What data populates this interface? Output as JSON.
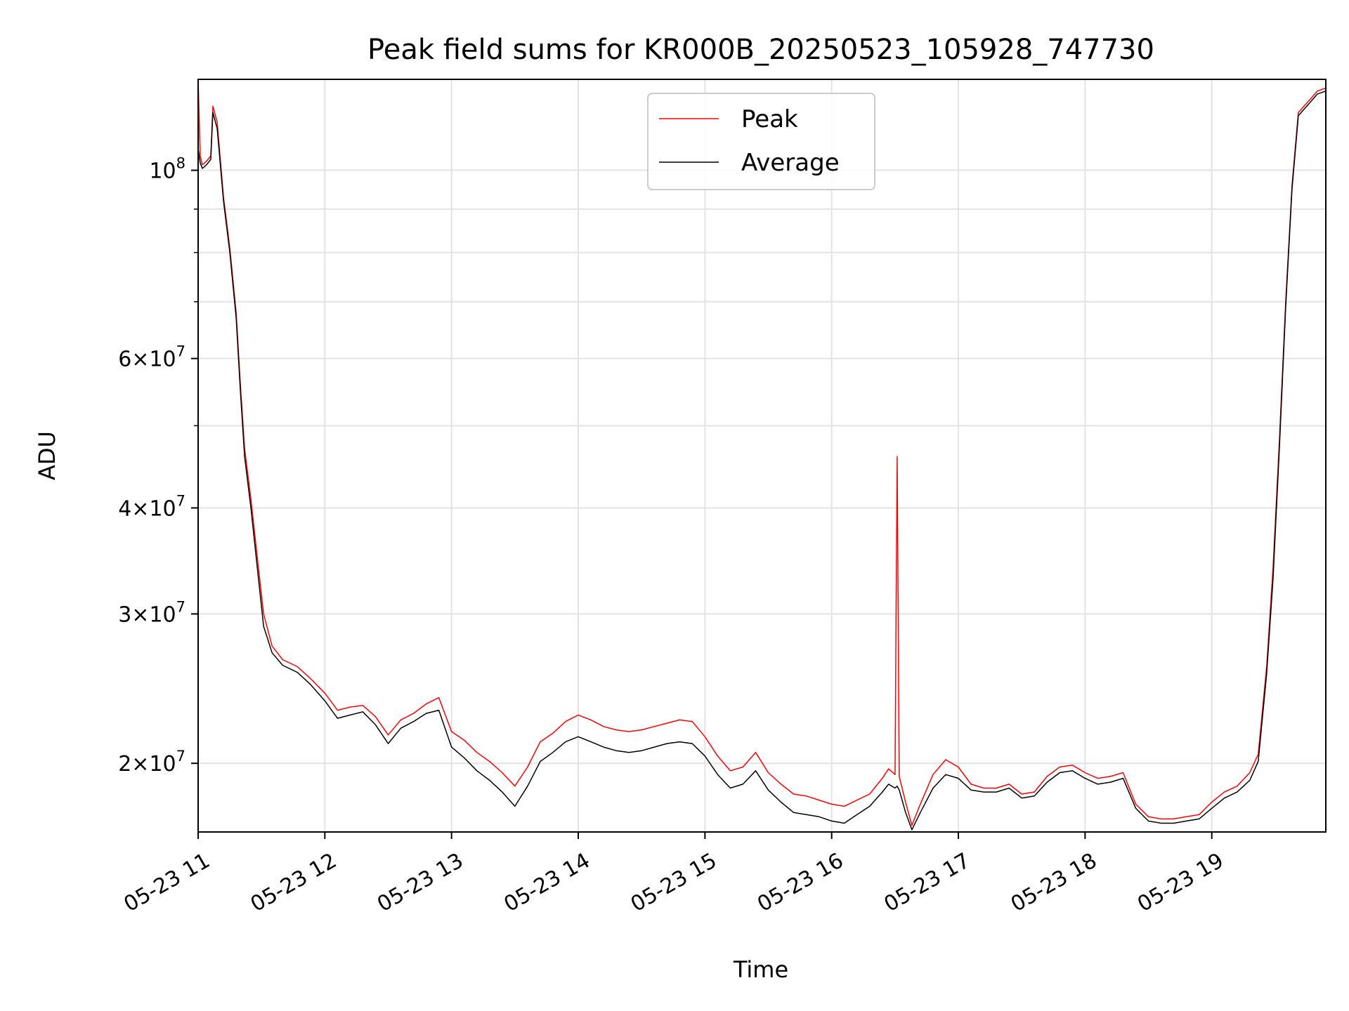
{
  "colors": {
    "peak": "#ff0000",
    "average": "#000000",
    "grid": "#e3e3e3",
    "axes": "#000000",
    "background": "#ffffff"
  },
  "chart_data": {
    "type": "line",
    "title": "Peak field sums for KR000B_20250523_105928_747730",
    "xlabel": "Time",
    "ylabel": "ADU",
    "yscale": "log",
    "grid": true,
    "legend_position": "top-center",
    "xlim": [
      "2025-05-23 11:00",
      "2025-05-23 19:54"
    ],
    "ylim": [
      16600000,
      128000000
    ],
    "x_ticks": [
      {
        "t": "2025-05-23 11:00",
        "label": "05-23 11"
      },
      {
        "t": "2025-05-23 12:00",
        "label": "05-23 12"
      },
      {
        "t": "2025-05-23 13:00",
        "label": "05-23 13"
      },
      {
        "t": "2025-05-23 14:00",
        "label": "05-23 14"
      },
      {
        "t": "2025-05-23 15:00",
        "label": "05-23 15"
      },
      {
        "t": "2025-05-23 16:00",
        "label": "05-23 16"
      },
      {
        "t": "2025-05-23 17:00",
        "label": "05-23 17"
      },
      {
        "t": "2025-05-23 18:00",
        "label": "05-23 18"
      },
      {
        "t": "2025-05-23 19:00",
        "label": "05-23 19"
      }
    ],
    "y_major_ticks": [
      {
        "v": 20000000,
        "mant": "2",
        "exp": "7"
      },
      {
        "v": 30000000,
        "mant": "3",
        "exp": "7"
      },
      {
        "v": 40000000,
        "mant": "4",
        "exp": "7"
      },
      {
        "v": 60000000,
        "mant": "6",
        "exp": "7"
      },
      {
        "v": 100000000,
        "mant": "",
        "exp": "8"
      }
    ],
    "y_minor_ticks": [
      50000000,
      70000000,
      80000000,
      90000000
    ],
    "series": [
      {
        "name": "Peak",
        "color": "#ff0000",
        "points": [
          [
            "2025-05-23 11:00",
            128000000
          ],
          [
            "2025-05-23 11:01",
            104000000
          ],
          [
            "2025-05-23 11:02",
            101500000
          ],
          [
            "2025-05-23 11:04",
            102500000
          ],
          [
            "2025-05-23 11:06",
            104000000
          ],
          [
            "2025-05-23 11:07",
            119000000
          ],
          [
            "2025-05-23 11:09",
            114000000
          ],
          [
            "2025-05-23 11:12",
            93000000
          ],
          [
            "2025-05-23 11:15",
            81000000
          ],
          [
            "2025-05-23 11:18",
            68000000
          ],
          [
            "2025-05-23 11:20",
            56000000
          ],
          [
            "2025-05-23 11:22",
            47000000
          ],
          [
            "2025-05-23 11:25",
            41000000
          ],
          [
            "2025-05-23 11:28",
            35000000
          ],
          [
            "2025-05-23 11:31",
            30000000
          ],
          [
            "2025-05-23 11:35",
            27500000
          ],
          [
            "2025-05-23 11:40",
            26500000
          ],
          [
            "2025-05-23 11:47",
            26000000
          ],
          [
            "2025-05-23 11:53",
            25200000
          ],
          [
            "2025-05-23 12:00",
            24200000
          ],
          [
            "2025-05-23 12:06",
            23100000
          ],
          [
            "2025-05-23 12:12",
            23300000
          ],
          [
            "2025-05-23 12:18",
            23400000
          ],
          [
            "2025-05-23 12:24",
            22700000
          ],
          [
            "2025-05-23 12:30",
            21600000
          ],
          [
            "2025-05-23 12:36",
            22500000
          ],
          [
            "2025-05-23 12:42",
            22900000
          ],
          [
            "2025-05-23 12:48",
            23500000
          ],
          [
            "2025-05-23 12:54",
            23900000
          ],
          [
            "2025-05-23 13:00",
            21800000
          ],
          [
            "2025-05-23 13:06",
            21300000
          ],
          [
            "2025-05-23 13:12",
            20600000
          ],
          [
            "2025-05-23 13:18",
            20100000
          ],
          [
            "2025-05-23 13:24",
            19500000
          ],
          [
            "2025-05-23 13:30",
            18800000
          ],
          [
            "2025-05-23 13:36",
            19800000
          ],
          [
            "2025-05-23 13:42",
            21200000
          ],
          [
            "2025-05-23 13:48",
            21700000
          ],
          [
            "2025-05-23 13:54",
            22400000
          ],
          [
            "2025-05-23 14:00",
            22800000
          ],
          [
            "2025-05-23 14:06",
            22500000
          ],
          [
            "2025-05-23 14:12",
            22100000
          ],
          [
            "2025-05-23 14:18",
            21900000
          ],
          [
            "2025-05-23 14:24",
            21800000
          ],
          [
            "2025-05-23 14:30",
            21900000
          ],
          [
            "2025-05-23 14:36",
            22100000
          ],
          [
            "2025-05-23 14:42",
            22300000
          ],
          [
            "2025-05-23 14:48",
            22500000
          ],
          [
            "2025-05-23 14:54",
            22400000
          ],
          [
            "2025-05-23 15:00",
            21500000
          ],
          [
            "2025-05-23 15:06",
            20400000
          ],
          [
            "2025-05-23 15:12",
            19600000
          ],
          [
            "2025-05-23 15:18",
            19800000
          ],
          [
            "2025-05-23 15:24",
            20600000
          ],
          [
            "2025-05-23 15:30",
            19500000
          ],
          [
            "2025-05-23 15:36",
            18900000
          ],
          [
            "2025-05-23 15:42",
            18400000
          ],
          [
            "2025-05-23 15:48",
            18300000
          ],
          [
            "2025-05-23 15:54",
            18100000
          ],
          [
            "2025-05-23 16:00",
            17900000
          ],
          [
            "2025-05-23 16:06",
            17800000
          ],
          [
            "2025-05-23 16:12",
            18100000
          ],
          [
            "2025-05-23 16:18",
            18400000
          ],
          [
            "2025-05-23 16:24",
            19200000
          ],
          [
            "2025-05-23 16:27",
            19700000
          ],
          [
            "2025-05-23 16:30",
            19400000
          ],
          [
            "2025-05-23 16:31",
            46000000
          ],
          [
            "2025-05-23 16:32",
            19300000
          ],
          [
            "2025-05-23 16:35",
            18000000
          ],
          [
            "2025-05-23 16:38",
            16900000
          ],
          [
            "2025-05-23 16:42",
            17900000
          ],
          [
            "2025-05-23 16:48",
            19400000
          ],
          [
            "2025-05-23 16:54",
            20200000
          ],
          [
            "2025-05-23 17:00",
            19800000
          ],
          [
            "2025-05-23 17:06",
            18900000
          ],
          [
            "2025-05-23 17:12",
            18700000
          ],
          [
            "2025-05-23 17:18",
            18700000
          ],
          [
            "2025-05-23 17:24",
            18900000
          ],
          [
            "2025-05-23 17:30",
            18400000
          ],
          [
            "2025-05-23 17:36",
            18500000
          ],
          [
            "2025-05-23 17:42",
            19300000
          ],
          [
            "2025-05-23 17:48",
            19800000
          ],
          [
            "2025-05-23 17:54",
            19900000
          ],
          [
            "2025-05-23 18:00",
            19500000
          ],
          [
            "2025-05-23 18:06",
            19200000
          ],
          [
            "2025-05-23 18:12",
            19300000
          ],
          [
            "2025-05-23 18:18",
            19500000
          ],
          [
            "2025-05-23 18:24",
            17900000
          ],
          [
            "2025-05-23 18:30",
            17300000
          ],
          [
            "2025-05-23 18:36",
            17200000
          ],
          [
            "2025-05-23 18:42",
            17200000
          ],
          [
            "2025-05-23 18:48",
            17300000
          ],
          [
            "2025-05-23 18:54",
            17400000
          ],
          [
            "2025-05-23 19:00",
            18000000
          ],
          [
            "2025-05-23 19:06",
            18500000
          ],
          [
            "2025-05-23 19:12",
            18800000
          ],
          [
            "2025-05-23 19:18",
            19500000
          ],
          [
            "2025-05-23 19:22",
            20500000
          ],
          [
            "2025-05-23 19:26",
            26000000
          ],
          [
            "2025-05-23 19:29",
            34000000
          ],
          [
            "2025-05-23 19:32",
            48000000
          ],
          [
            "2025-05-23 19:35",
            70000000
          ],
          [
            "2025-05-23 19:38",
            96000000
          ],
          [
            "2025-05-23 19:41",
            117000000
          ],
          [
            "2025-05-23 19:45",
            120000000
          ],
          [
            "2025-05-23 19:50",
            124000000
          ],
          [
            "2025-05-23 19:54",
            125000000
          ]
        ]
      },
      {
        "name": "Average",
        "color": "#000000",
        "points": [
          [
            "2025-05-23 11:00",
            106000000
          ],
          [
            "2025-05-23 11:01",
            102000000
          ],
          [
            "2025-05-23 11:02",
            100500000
          ],
          [
            "2025-05-23 11:04",
            101500000
          ],
          [
            "2025-05-23 11:06",
            103000000
          ],
          [
            "2025-05-23 11:07",
            117000000
          ],
          [
            "2025-05-23 11:09",
            112000000
          ],
          [
            "2025-05-23 11:12",
            92000000
          ],
          [
            "2025-05-23 11:15",
            80000000
          ],
          [
            "2025-05-23 11:18",
            67000000
          ],
          [
            "2025-05-23 11:20",
            55000000
          ],
          [
            "2025-05-23 11:22",
            46000000
          ],
          [
            "2025-05-23 11:25",
            40000000
          ],
          [
            "2025-05-23 11:28",
            34000000
          ],
          [
            "2025-05-23 11:31",
            29000000
          ],
          [
            "2025-05-23 11:35",
            27000000
          ],
          [
            "2025-05-23 11:40",
            26100000
          ],
          [
            "2025-05-23 11:47",
            25600000
          ],
          [
            "2025-05-23 11:53",
            24800000
          ],
          [
            "2025-05-23 12:00",
            23700000
          ],
          [
            "2025-05-23 12:06",
            22600000
          ],
          [
            "2025-05-23 12:12",
            22800000
          ],
          [
            "2025-05-23 12:18",
            23000000
          ],
          [
            "2025-05-23 12:24",
            22200000
          ],
          [
            "2025-05-23 12:30",
            21100000
          ],
          [
            "2025-05-23 12:36",
            22000000
          ],
          [
            "2025-05-23 12:42",
            22400000
          ],
          [
            "2025-05-23 12:48",
            22900000
          ],
          [
            "2025-05-23 12:54",
            23100000
          ],
          [
            "2025-05-23 13:00",
            20900000
          ],
          [
            "2025-05-23 13:06",
            20300000
          ],
          [
            "2025-05-23 13:12",
            19600000
          ],
          [
            "2025-05-23 13:18",
            19100000
          ],
          [
            "2025-05-23 13:24",
            18500000
          ],
          [
            "2025-05-23 13:30",
            17800000
          ],
          [
            "2025-05-23 13:36",
            18800000
          ],
          [
            "2025-05-23 13:42",
            20100000
          ],
          [
            "2025-05-23 13:48",
            20600000
          ],
          [
            "2025-05-23 13:54",
            21200000
          ],
          [
            "2025-05-23 14:00",
            21500000
          ],
          [
            "2025-05-23 14:06",
            21200000
          ],
          [
            "2025-05-23 14:12",
            20900000
          ],
          [
            "2025-05-23 14:18",
            20700000
          ],
          [
            "2025-05-23 14:24",
            20600000
          ],
          [
            "2025-05-23 14:30",
            20700000
          ],
          [
            "2025-05-23 14:36",
            20900000
          ],
          [
            "2025-05-23 14:42",
            21100000
          ],
          [
            "2025-05-23 14:48",
            21200000
          ],
          [
            "2025-05-23 14:54",
            21100000
          ],
          [
            "2025-05-23 15:00",
            20400000
          ],
          [
            "2025-05-23 15:06",
            19400000
          ],
          [
            "2025-05-23 15:12",
            18700000
          ],
          [
            "2025-05-23 15:18",
            18900000
          ],
          [
            "2025-05-23 15:24",
            19600000
          ],
          [
            "2025-05-23 15:30",
            18600000
          ],
          [
            "2025-05-23 15:36",
            18000000
          ],
          [
            "2025-05-23 15:42",
            17500000
          ],
          [
            "2025-05-23 15:48",
            17400000
          ],
          [
            "2025-05-23 15:54",
            17300000
          ],
          [
            "2025-05-23 16:00",
            17100000
          ],
          [
            "2025-05-23 16:06",
            17000000
          ],
          [
            "2025-05-23 16:12",
            17400000
          ],
          [
            "2025-05-23 16:18",
            17800000
          ],
          [
            "2025-05-23 16:24",
            18500000
          ],
          [
            "2025-05-23 16:27",
            18900000
          ],
          [
            "2025-05-23 16:30",
            18700000
          ],
          [
            "2025-05-23 16:31",
            18800000
          ],
          [
            "2025-05-23 16:32",
            18600000
          ],
          [
            "2025-05-23 16:35",
            17500000
          ],
          [
            "2025-05-23 16:38",
            16700000
          ],
          [
            "2025-05-23 16:42",
            17500000
          ],
          [
            "2025-05-23 16:48",
            18700000
          ],
          [
            "2025-05-23 16:54",
            19400000
          ],
          [
            "2025-05-23 17:00",
            19200000
          ],
          [
            "2025-05-23 17:06",
            18600000
          ],
          [
            "2025-05-23 17:12",
            18500000
          ],
          [
            "2025-05-23 17:18",
            18500000
          ],
          [
            "2025-05-23 17:24",
            18700000
          ],
          [
            "2025-05-23 17:30",
            18200000
          ],
          [
            "2025-05-23 17:36",
            18300000
          ],
          [
            "2025-05-23 17:42",
            19000000
          ],
          [
            "2025-05-23 17:48",
            19500000
          ],
          [
            "2025-05-23 17:54",
            19600000
          ],
          [
            "2025-05-23 18:00",
            19200000
          ],
          [
            "2025-05-23 18:06",
            18900000
          ],
          [
            "2025-05-23 18:12",
            19000000
          ],
          [
            "2025-05-23 18:18",
            19200000
          ],
          [
            "2025-05-23 18:24",
            17700000
          ],
          [
            "2025-05-23 18:30",
            17100000
          ],
          [
            "2025-05-23 18:36",
            17000000
          ],
          [
            "2025-05-23 18:42",
            17000000
          ],
          [
            "2025-05-23 18:48",
            17100000
          ],
          [
            "2025-05-23 18:54",
            17200000
          ],
          [
            "2025-05-23 19:00",
            17700000
          ],
          [
            "2025-05-23 19:06",
            18200000
          ],
          [
            "2025-05-23 19:12",
            18500000
          ],
          [
            "2025-05-23 19:18",
            19100000
          ],
          [
            "2025-05-23 19:22",
            20100000
          ],
          [
            "2025-05-23 19:26",
            25500000
          ],
          [
            "2025-05-23 19:29",
            33000000
          ],
          [
            "2025-05-23 19:32",
            47000000
          ],
          [
            "2025-05-23 19:35",
            69000000
          ],
          [
            "2025-05-23 19:38",
            95000000
          ],
          [
            "2025-05-23 19:41",
            116000000
          ],
          [
            "2025-05-23 19:45",
            119000000
          ],
          [
            "2025-05-23 19:50",
            123000000
          ],
          [
            "2025-05-23 19:54",
            124000000
          ]
        ]
      }
    ]
  }
}
